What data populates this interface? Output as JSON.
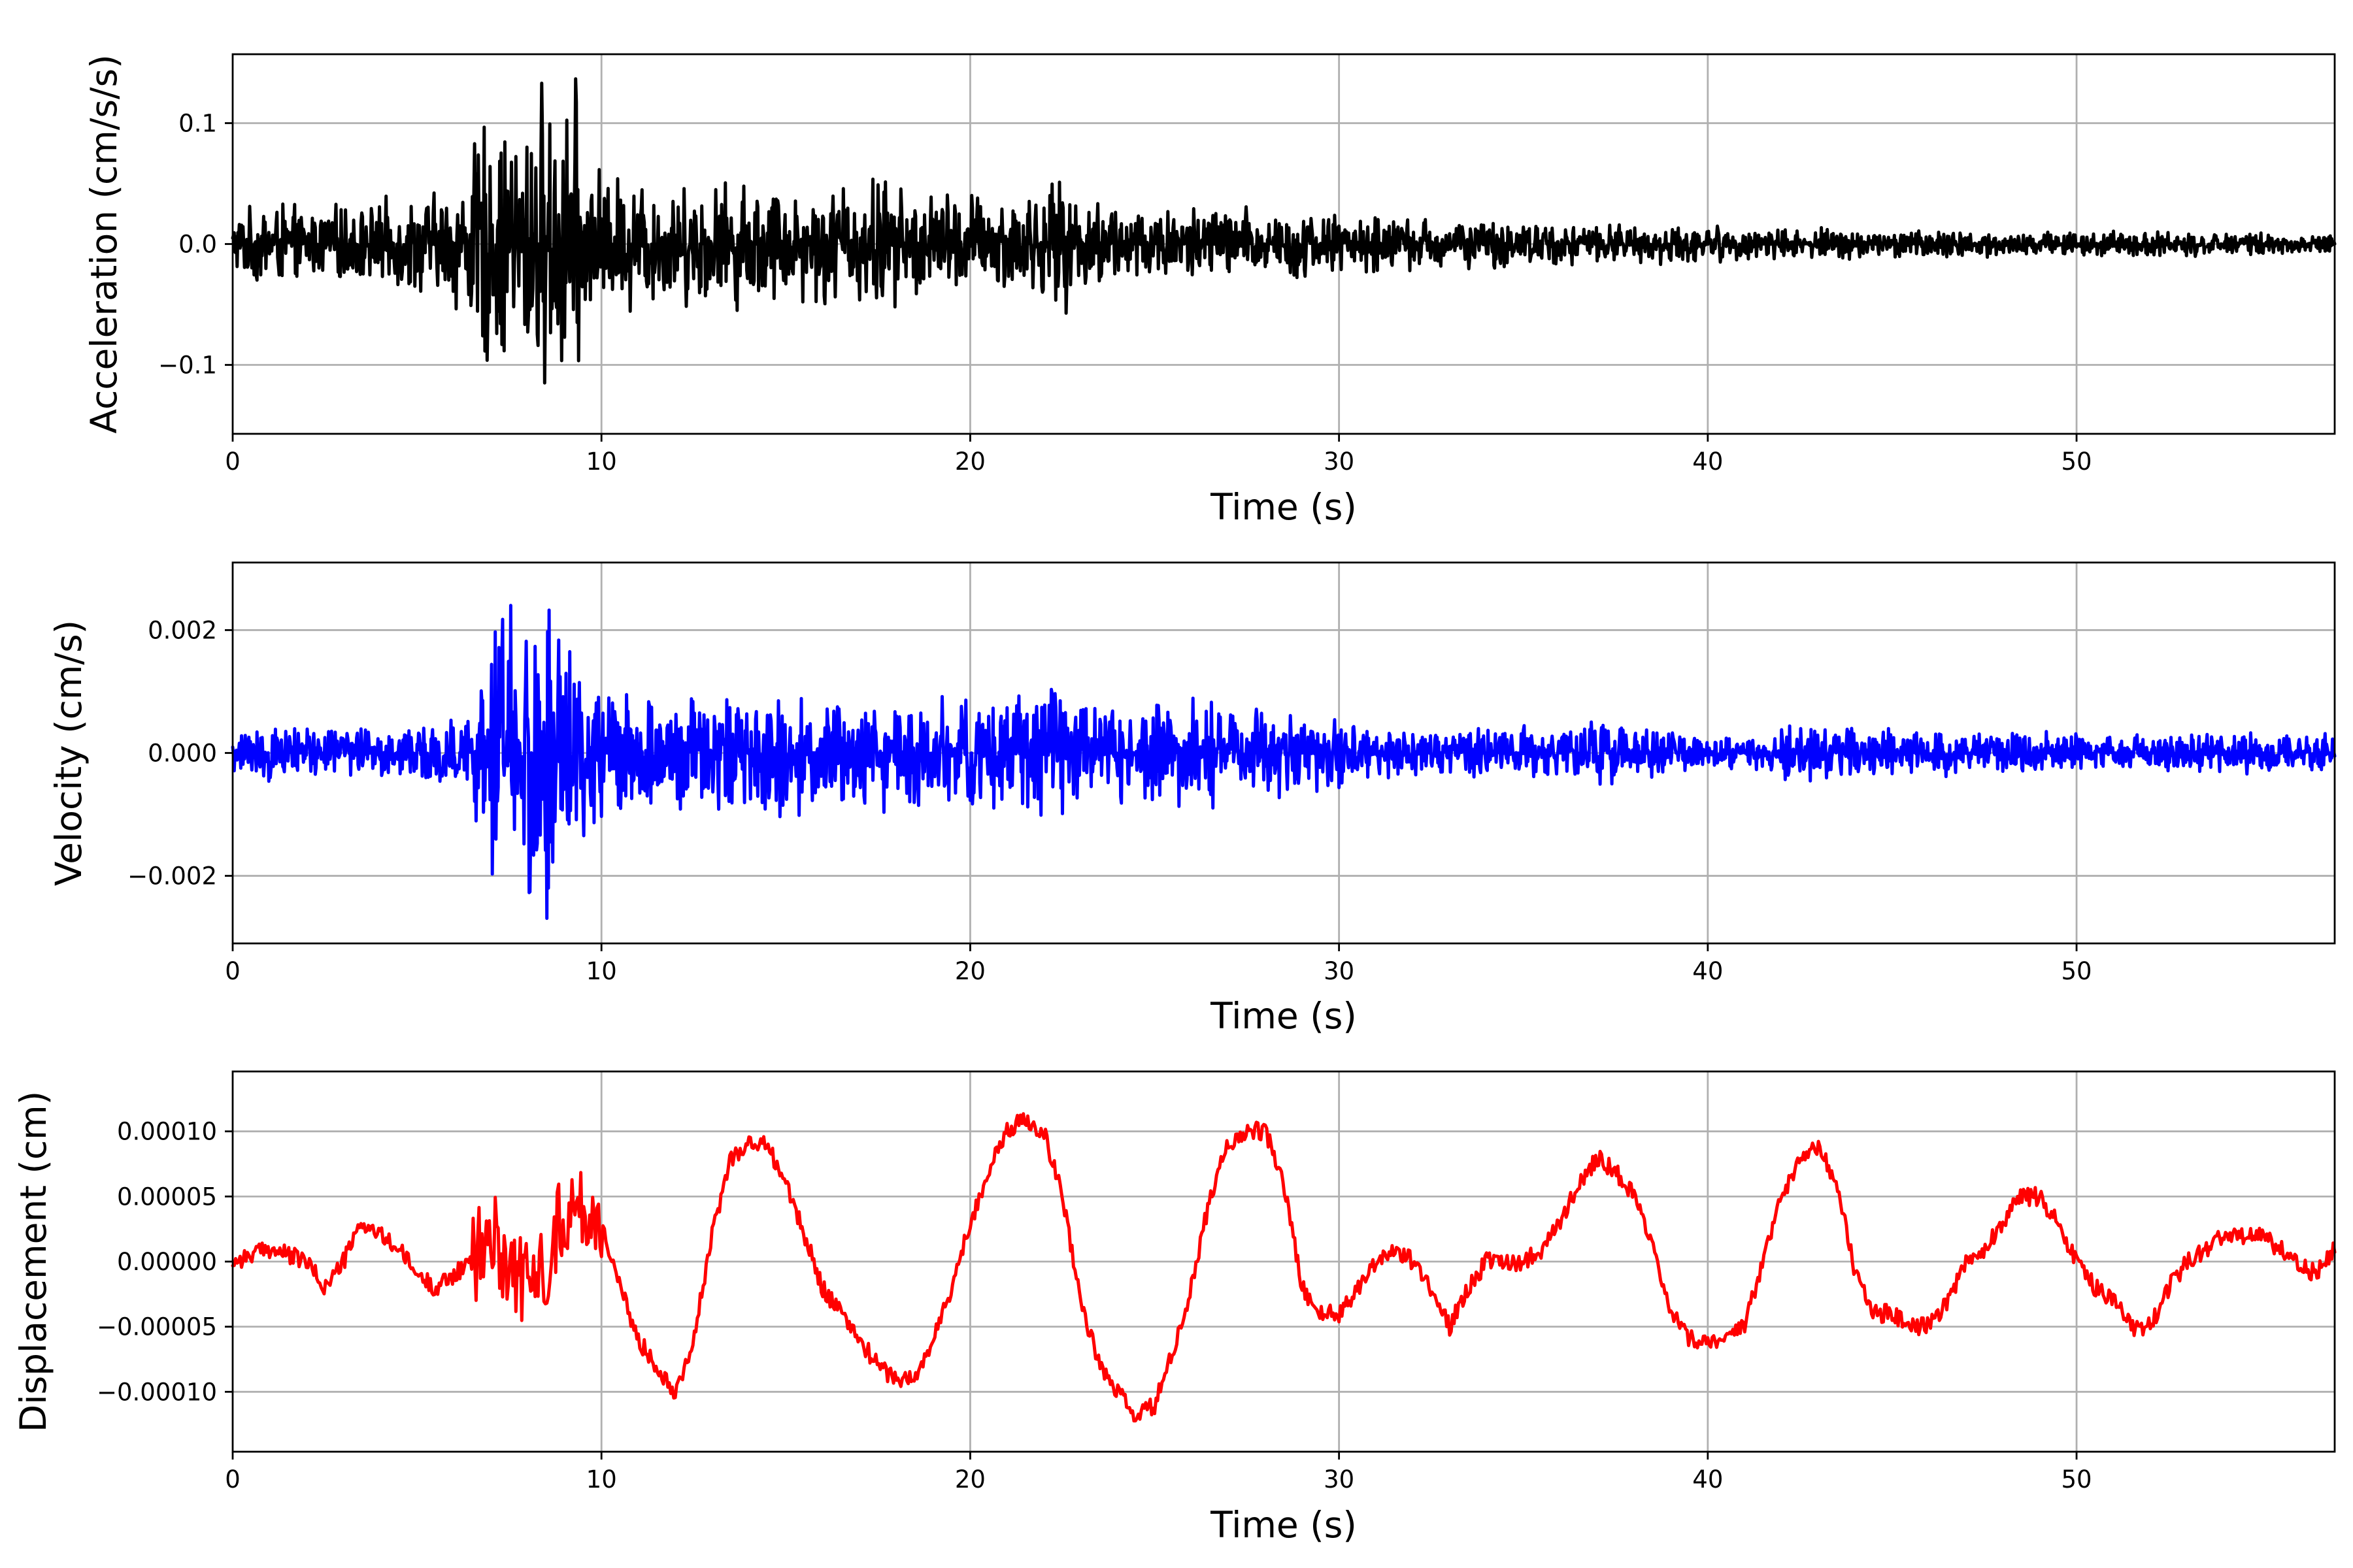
{
  "chart_data": [
    {
      "type": "line",
      "xlabel": "Time (s)",
      "ylabel": "Acceleration (cm/s/s)",
      "xlim": [
        0,
        57
      ],
      "ylim": [
        -0.157,
        0.157
      ],
      "x_ticks": [
        0,
        10,
        20,
        30,
        40,
        50
      ],
      "x_tick_labels": [
        "0",
        "10",
        "20",
        "30",
        "40",
        "50"
      ],
      "y_ticks": [
        0.1,
        0.0,
        -0.1
      ],
      "y_tick_labels": [
        "0.1",
        "0.0",
        "−0.1"
      ],
      "grid": true,
      "series": [
        {
          "color": "#000000",
          "x": [
            0,
            0.5,
            1.0,
            1.5,
            2.0,
            2.5,
            3.0,
            3.5,
            4.0,
            4.5,
            5.0,
            5.5,
            6.0,
            6.5,
            6.9,
            7.2,
            7.6,
            8.0,
            8.4,
            8.6,
            8.9,
            9.2,
            9.5,
            10.0,
            11.0,
            12.0,
            13.0,
            14.0,
            15.0,
            16.0,
            17.0,
            17.6,
            18.0,
            19.0,
            20.0,
            21.0,
            22.0,
            22.6,
            23.0,
            24.0,
            25.0,
            26.0,
            27.0,
            27.6,
            28.0,
            29.0,
            30.0,
            31.0,
            32.0,
            33.0,
            34.0,
            35.0,
            36.0,
            37.0,
            38.0,
            39.0,
            40.0,
            41.0,
            42.0,
            43.0,
            44.0,
            45.0,
            46.0,
            47.0,
            48.0,
            49.0,
            50.0,
            51.0,
            52.0,
            53.0,
            54.0,
            55.0,
            56.0,
            57.0
          ],
          "envelope": [
            0.025,
            0.028,
            0.035,
            0.03,
            0.025,
            0.028,
            0.03,
            0.03,
            0.032,
            0.035,
            0.04,
            0.04,
            0.045,
            0.075,
            0.1,
            0.085,
            0.095,
            0.11,
            0.125,
            0.1,
            0.115,
            0.14,
            0.08,
            0.055,
            0.05,
            0.045,
            0.048,
            0.05,
            0.045,
            0.045,
            0.048,
            0.058,
            0.045,
            0.042,
            0.04,
            0.04,
            0.042,
            0.05,
            0.038,
            0.035,
            0.03,
            0.032,
            0.03,
            0.028,
            0.028,
            0.026,
            0.024,
            0.022,
            0.02,
            0.02,
            0.018,
            0.018,
            0.016,
            0.015,
            0.015,
            0.014,
            0.014,
            0.013,
            0.012,
            0.012,
            0.012,
            0.011,
            0.011,
            0.01,
            0.01,
            0.01,
            0.01,
            0.009,
            0.009,
            0.009,
            0.008,
            0.008,
            0.008,
            0.007
          ]
        }
      ]
    },
    {
      "type": "line",
      "xlabel": "Time (s)",
      "ylabel": "Velocity (cm/s)",
      "xlim": [
        0,
        57
      ],
      "ylim": [
        -0.0031,
        0.0031
      ],
      "x_ticks": [
        0,
        10,
        20,
        30,
        40,
        50
      ],
      "x_tick_labels": [
        "0",
        "10",
        "20",
        "30",
        "40",
        "50"
      ],
      "y_ticks": [
        0.002,
        0.0,
        -0.002
      ],
      "y_tick_labels": [
        "0.002",
        "0.000",
        "−0.002"
      ],
      "grid": true,
      "series": [
        {
          "color": "#0000ff",
          "x": [
            0,
            1,
            2,
            3,
            4,
            5,
            6,
            6.5,
            7.0,
            7.5,
            8.0,
            8.3,
            8.7,
            9.2,
            9.7,
            10.5,
            11.5,
            12.5,
            13.5,
            14.5,
            15.5,
            16.5,
            17.5,
            18.5,
            19.5,
            20.5,
            21.5,
            22.5,
            23.5,
            24.5,
            25.5,
            26.5,
            27.5,
            28.5,
            29.5,
            30.5,
            31.5,
            32.5,
            33.5,
            34.5,
            35.5,
            36.5,
            37.5,
            38.5,
            39.5,
            40.5,
            41.5,
            42.5,
            43.5,
            44.5,
            45.5,
            46.5,
            47.5,
            48.5,
            49.5,
            50.5,
            51.5,
            52.5,
            53.5,
            54.5,
            55.5,
            56.5,
            57.0
          ],
          "envelope": [
            0.0004,
            0.0004,
            0.00045,
            0.0004,
            0.00045,
            0.0004,
            0.0005,
            0.0008,
            0.0022,
            0.0021,
            0.0025,
            0.0026,
            0.0023,
            0.0022,
            0.0012,
            0.001,
            0.0009,
            0.0009,
            0.0009,
            0.0009,
            0.0009,
            0.00085,
            0.0009,
            0.00085,
            0.0009,
            0.0009,
            0.0009,
            0.001,
            0.00085,
            0.0008,
            0.0008,
            0.0008,
            0.0007,
            0.0007,
            0.0006,
            0.0004,
            0.0004,
            0.0004,
            0.0004,
            0.00035,
            0.0004,
            0.00045,
            0.00055,
            0.0004,
            0.00025,
            0.00025,
            0.0003,
            0.00045,
            0.00045,
            0.00035,
            0.00035,
            0.00035,
            0.0003,
            0.00035,
            0.0003,
            0.00025,
            0.00025,
            0.0003,
            0.0003,
            0.0003,
            0.0003,
            0.0003,
            0.0003
          ]
        }
      ]
    },
    {
      "type": "line",
      "xlabel": "Time (s)",
      "ylabel": "Displacement (cm)",
      "xlim": [
        0,
        57
      ],
      "ylim": [
        -0.000146,
        0.000146
      ],
      "x_ticks": [
        0,
        10,
        20,
        30,
        40,
        50
      ],
      "x_tick_labels": [
        "0",
        "10",
        "20",
        "30",
        "40",
        "50"
      ],
      "y_ticks": [
        0.0001,
        5e-05,
        0.0,
        -5e-05,
        -0.0001
      ],
      "y_tick_labels": [
        "0.00010",
        "0.00005",
        "0.00000",
        "−0.00005",
        "−0.00010"
      ],
      "grid": true,
      "series": [
        {
          "color": "#ff0000",
          "x": [
            0,
            1.0,
            2.0,
            2.5,
            3.0,
            3.5,
            4.0,
            4.5,
            5.0,
            5.5,
            6.0,
            6.5,
            7.0,
            7.5,
            8.0,
            8.5,
            9.0,
            9.5,
            10.0,
            10.5,
            11.0,
            11.5,
            12.0,
            12.5,
            13.0,
            13.5,
            14.0,
            14.5,
            15.0,
            15.5,
            16.0,
            16.5,
            17.0,
            17.5,
            18.0,
            18.5,
            19.0,
            19.5,
            20.0,
            20.5,
            21.0,
            21.5,
            22.0,
            22.5,
            23.0,
            23.5,
            24.0,
            24.5,
            25.0,
            25.5,
            26.0,
            26.5,
            27.0,
            27.5,
            28.0,
            28.5,
            29.0,
            29.5,
            30.0,
            30.5,
            31.0,
            31.5,
            32.0,
            32.5,
            33.0,
            33.5,
            34.0,
            34.5,
            35.0,
            35.5,
            36.0,
            36.5,
            37.0,
            37.5,
            38.0,
            38.5,
            39.0,
            39.5,
            40.0,
            40.5,
            41.0,
            41.5,
            42.0,
            42.5,
            43.0,
            43.5,
            44.0,
            44.5,
            45.0,
            45.5,
            46.0,
            46.5,
            47.0,
            47.5,
            48.0,
            48.5,
            49.0,
            49.5,
            50.0,
            50.5,
            51.0,
            51.5,
            52.0,
            52.5,
            53.0,
            53.5,
            54.0,
            54.5,
            55.0,
            55.5,
            56.0,
            56.5,
            57.0
          ],
          "y": [
            0.0,
            1e-05,
            0.0,
            -2e-05,
            0.0,
            3e-05,
            2e-05,
            1e-05,
            -1e-05,
            -2e-05,
            -1e-05,
            0.0,
            2e-05,
            0.0,
            -2e-05,
            0.0,
            4e-05,
            4e-05,
            3e-05,
            -2e-05,
            -6e-05,
            -8e-05,
            -0.0001,
            -6e-05,
            2e-05,
            8e-05,
            9e-05,
            9e-05,
            6e-05,
            2e-05,
            -2e-05,
            -4e-05,
            -6e-05,
            -8e-05,
            -9e-05,
            -9e-05,
            -6e-05,
            -2e-05,
            3e-05,
            7e-05,
            0.0001,
            0.00011,
            0.0001,
            5e-05,
            -3e-05,
            -8e-05,
            -0.0001,
            -0.00012,
            -0.00011,
            -7e-05,
            -2e-05,
            5e-05,
            9e-05,
            0.0001,
            0.0001,
            6e-05,
            -2e-05,
            -4e-05,
            -4e-05,
            -2e-05,
            0.0,
            1e-05,
            0.0,
            -2e-05,
            -5e-05,
            -2e-05,
            0.0,
            0.0,
            0.0,
            1e-05,
            3e-05,
            6e-05,
            8e-05,
            7e-05,
            5e-05,
            1e-05,
            -4e-05,
            -6e-05,
            -6e-05,
            -6e-05,
            -5e-05,
            0.0,
            5e-05,
            8e-05,
            9e-05,
            6e-05,
            -1e-05,
            -4e-05,
            -4e-05,
            -5e-05,
            -5e-05,
            -3e-05,
            0.0,
            1e-05,
            3e-05,
            5e-05,
            5e-05,
            3e-05,
            0.0,
            -2e-05,
            -3e-05,
            -5e-05,
            -5e-05,
            -2e-05,
            0.0,
            1e-05,
            2e-05,
            2e-05,
            2e-05,
            1e-05,
            0.0,
            -1e-05,
            1e-05
          ]
        }
      ]
    }
  ]
}
